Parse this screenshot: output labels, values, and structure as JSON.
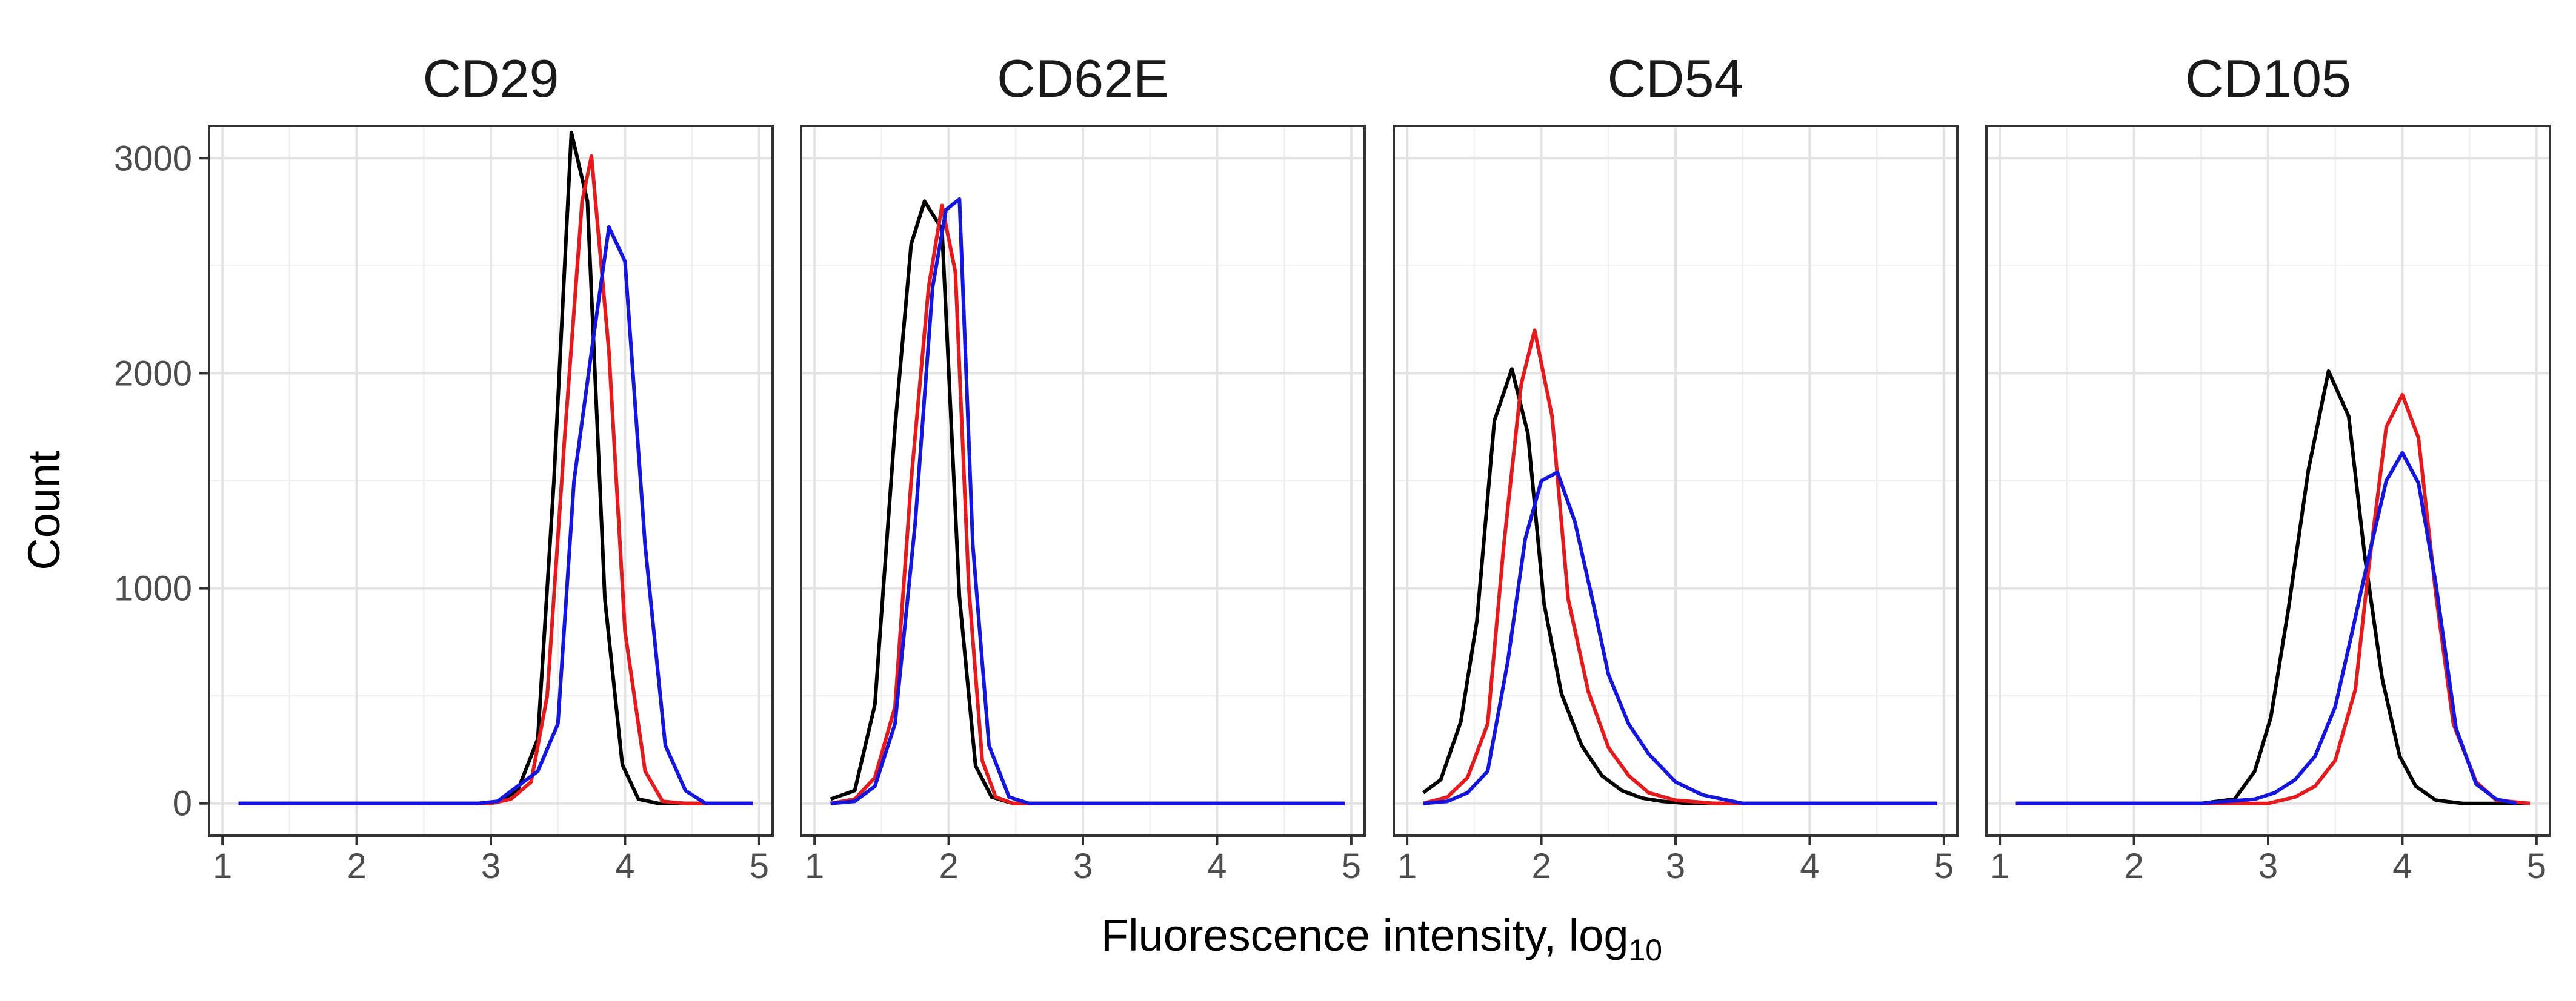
{
  "chart_data": {
    "type": "line",
    "xlabel": "Fluorescence intensity, log",
    "xlabel_sub": "10",
    "ylabel": "Count",
    "xlim": [
      0.9,
      5.1
    ],
    "ylim": [
      -150,
      3150
    ],
    "x_ticks": [
      1,
      2,
      3,
      4,
      5
    ],
    "y_ticks": [
      0,
      1000,
      2000,
      3000
    ],
    "grid": true,
    "colors": {
      "black": "#000000",
      "red": "#e41a1c",
      "blue": "#1515e0"
    },
    "panels": [
      {
        "title": "CD29",
        "series": [
          {
            "color": "#000000",
            "x": [
              1.12,
              2.5,
              2.9,
              3.05,
              3.2,
              3.35,
              3.47,
              3.6,
              3.72,
              3.85,
              3.98,
              4.1,
              4.25,
              4.4,
              4.6,
              4.95
            ],
            "y": [
              0,
              0,
              0,
              5,
              60,
              300,
              1500,
              3120,
              2800,
              950,
              180,
              20,
              0,
              0,
              0,
              0
            ]
          },
          {
            "color": "#e41a1c",
            "x": [
              1.12,
              2.5,
              3.0,
              3.15,
              3.3,
              3.42,
              3.55,
              3.68,
              3.75,
              3.88,
              4.0,
              4.15,
              4.28,
              4.45,
              4.95
            ],
            "y": [
              0,
              0,
              0,
              20,
              100,
              500,
              1700,
              2800,
              3010,
              2100,
              800,
              150,
              10,
              0,
              0
            ]
          },
          {
            "color": "#1515e0",
            "x": [
              1.12,
              2.5,
              2.9,
              3.05,
              3.2,
              3.35,
              3.5,
              3.62,
              3.75,
              3.88,
              4.0,
              4.15,
              4.3,
              4.45,
              4.6,
              4.95
            ],
            "y": [
              0,
              0,
              0,
              10,
              80,
              150,
              370,
              1500,
              2100,
              2680,
              2520,
              1200,
              270,
              60,
              0,
              0
            ]
          }
        ]
      },
      {
        "title": "CD62E",
        "series": [
          {
            "color": "#000000",
            "x": [
              1.12,
              1.3,
              1.45,
              1.6,
              1.72,
              1.82,
              1.95,
              2.08,
              2.2,
              2.32,
              2.48,
              4.95
            ],
            "y": [
              20,
              60,
              460,
              1750,
              2600,
              2800,
              2670,
              960,
              175,
              30,
              0,
              0
            ]
          },
          {
            "color": "#e41a1c",
            "x": [
              1.12,
              1.3,
              1.45,
              1.6,
              1.72,
              1.85,
              1.95,
              2.05,
              2.15,
              2.25,
              2.35,
              2.48,
              4.95
            ],
            "y": [
              0,
              20,
              120,
              450,
              1500,
              2400,
              2780,
              2470,
              1000,
              200,
              30,
              0,
              0
            ]
          },
          {
            "color": "#1515e0",
            "x": [
              1.12,
              1.3,
              1.45,
              1.6,
              1.75,
              1.88,
              1.98,
              2.08,
              2.18,
              2.3,
              2.45,
              2.6,
              4.95
            ],
            "y": [
              0,
              10,
              80,
              370,
              1300,
              2400,
              2760,
              2810,
              1200,
              270,
              30,
              0,
              0
            ]
          }
        ]
      },
      {
        "title": "CD54",
        "series": [
          {
            "color": "#000000",
            "x": [
              1.12,
              1.25,
              1.4,
              1.52,
              1.65,
              1.78,
              1.9,
              2.02,
              2.15,
              2.3,
              2.45,
              2.6,
              2.75,
              2.9,
              3.1,
              3.4,
              4.95
            ],
            "y": [
              50,
              110,
              380,
              850,
              1780,
              2020,
              1720,
              930,
              510,
              270,
              130,
              60,
              25,
              10,
              0,
              0,
              0
            ]
          },
          {
            "color": "#e41a1c",
            "x": [
              1.12,
              1.3,
              1.45,
              1.6,
              1.72,
              1.85,
              1.95,
              2.08,
              2.2,
              2.35,
              2.5,
              2.65,
              2.8,
              3.0,
              3.3,
              4.95
            ],
            "y": [
              0,
              30,
              120,
              370,
              1200,
              1950,
              2200,
              1800,
              950,
              520,
              260,
              130,
              50,
              15,
              0,
              0
            ]
          },
          {
            "color": "#1515e0",
            "x": [
              1.12,
              1.3,
              1.45,
              1.6,
              1.75,
              1.88,
              2.0,
              2.12,
              2.25,
              2.38,
              2.5,
              2.65,
              2.8,
              3.0,
              3.2,
              3.5,
              4.95
            ],
            "y": [
              0,
              10,
              50,
              150,
              660,
              1230,
              1500,
              1540,
              1310,
              950,
              600,
              370,
              230,
              100,
              40,
              0,
              0
            ]
          }
        ]
      },
      {
        "title": "CD105",
        "series": [
          {
            "color": "#000000",
            "x": [
              1.12,
              2.5,
              2.75,
              2.9,
              3.02,
              3.15,
              3.3,
              3.45,
              3.6,
              3.72,
              3.85,
              3.98,
              4.1,
              4.25,
              4.45,
              4.95
            ],
            "y": [
              0,
              0,
              20,
              150,
              400,
              900,
              1550,
              2010,
              1800,
              1150,
              580,
              220,
              80,
              15,
              0,
              0
            ]
          },
          {
            "color": "#e41a1c",
            "x": [
              1.12,
              2.5,
              3.0,
              3.2,
              3.35,
              3.5,
              3.65,
              3.75,
              3.88,
              4.0,
              4.12,
              4.25,
              4.38,
              4.55,
              4.7,
              4.95
            ],
            "y": [
              0,
              0,
              0,
              30,
              80,
              200,
              530,
              1100,
              1750,
              1900,
              1700,
              970,
              370,
              100,
              15,
              0
            ]
          },
          {
            "color": "#1515e0",
            "x": [
              1.12,
              2.5,
              2.9,
              3.05,
              3.2,
              3.35,
              3.5,
              3.62,
              3.75,
              3.88,
              4.0,
              4.12,
              4.25,
              4.4,
              4.55,
              4.7,
              4.85
            ],
            "y": [
              0,
              0,
              20,
              50,
              110,
              220,
              450,
              780,
              1150,
              1500,
              1630,
              1490,
              1020,
              350,
              90,
              20,
              0
            ]
          }
        ]
      }
    ]
  }
}
